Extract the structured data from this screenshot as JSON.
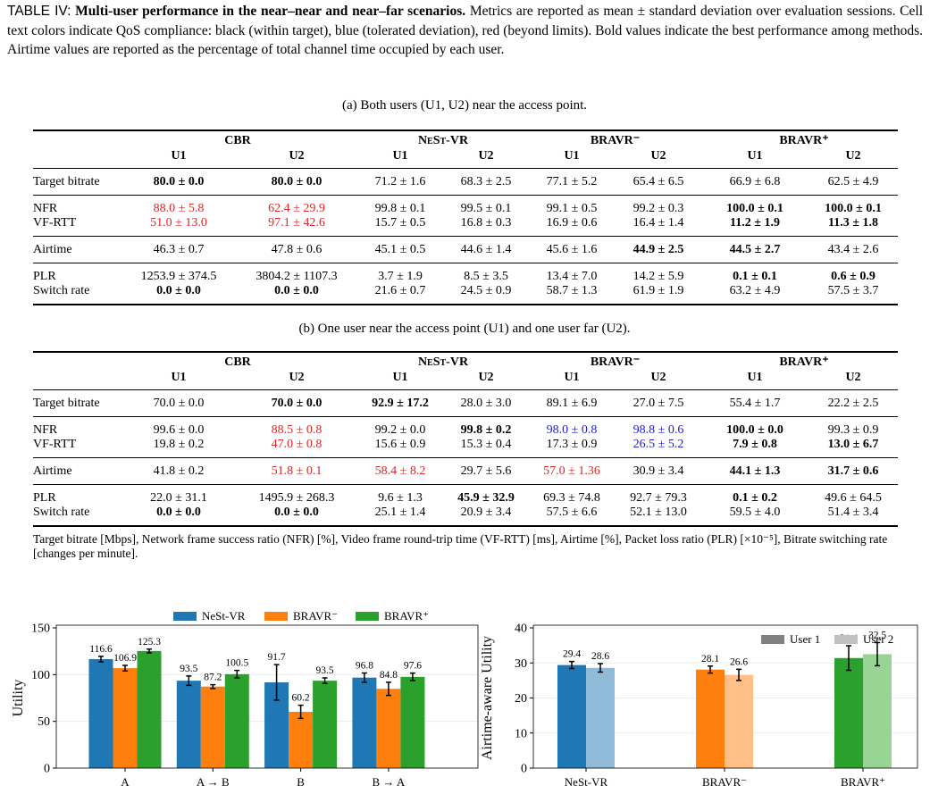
{
  "caption": {
    "label": "TABLE IV:",
    "title": "Multi-user performance in the near–near and near–far scenarios.",
    "text": "Metrics are reported as mean ± standard deviation over evaluation sessions. Cell text colors indicate QoS compliance: black (within target), blue (tolerated deviation), red (beyond limits). Bold values indicate the best performance among methods. Airtime values are reported as the percentage of total channel time occupied by each user."
  },
  "tables": [
    {
      "subcaption": "(a) Both users (U1, U2) near the access point.",
      "methods": [
        "CBR",
        "NeSt-VR",
        "BRAVR⁻",
        "BRAVR⁺"
      ],
      "users": [
        "U1",
        "U2"
      ],
      "row_groups": [
        [
          {
            "label": "Target bitrate",
            "cells": [
              {
                "text": "80.0 ± 0.0",
                "bold": true
              },
              {
                "text": "80.0 ± 0.0",
                "bold": true
              },
              "71.2 ± 1.6",
              "68.3 ± 2.5",
              "77.1 ± 5.2",
              "65.4 ± 6.5",
              "66.9 ± 6.8",
              "62.5 ± 4.9"
            ]
          }
        ],
        [
          {
            "label": "NFR",
            "cells": [
              {
                "text": "88.0 ± 5.8",
                "color": "#d42a2a"
              },
              {
                "text": "62.4 ± 29.9",
                "color": "#d42a2a"
              },
              "99.8 ± 0.1",
              "99.5 ± 0.1",
              "99.1 ± 0.5",
              "99.2 ± 0.3",
              {
                "text": "100.0 ± 0.1",
                "bold": true
              },
              {
                "text": "100.0 ± 0.1",
                "bold": true
              }
            ]
          },
          {
            "label": "VF-RTT",
            "cells": [
              {
                "text": "51.0 ± 13.0",
                "color": "#d42a2a"
              },
              {
                "text": "97.1 ± 42.6",
                "color": "#d42a2a"
              },
              "15.7 ± 0.5",
              "16.8 ± 0.3",
              "16.9 ± 0.6",
              "16.4 ± 1.4",
              {
                "text": "11.2 ± 1.9",
                "bold": true
              },
              {
                "text": "11.3 ± 1.8",
                "bold": true
              }
            ]
          }
        ],
        [
          {
            "label": "Airtime",
            "cells": [
              "46.3 ± 0.7",
              "47.8 ± 0.6",
              "45.1 ± 0.5",
              "44.6 ± 1.4",
              "45.6 ± 1.6",
              {
                "text": "44.9 ± 2.5",
                "bold": true
              },
              {
                "text": "44.5 ± 2.7",
                "bold": true
              },
              "43.4 ± 2.6"
            ]
          }
        ],
        [
          {
            "label": "PLR",
            "cells": [
              "1253.9 ± 374.5",
              "3804.2 ± 1107.3",
              "3.7 ± 1.9",
              "8.5 ± 3.5",
              "13.4 ± 7.0",
              "14.2 ± 5.9",
              {
                "text": "0.1 ± 0.1",
                "bold": true
              },
              {
                "text": "0.6 ± 0.9",
                "bold": true
              }
            ]
          },
          {
            "label": "Switch rate",
            "cells": [
              {
                "text": "0.0 ± 0.0",
                "bold": true
              },
              {
                "text": "0.0 ± 0.0",
                "bold": true
              },
              "21.6 ± 0.7",
              "24.5 ± 0.9",
              "58.7 ± 1.3",
              "61.9 ± 1.9",
              "63.2 ± 4.9",
              "57.5 ± 3.7"
            ]
          }
        ]
      ]
    },
    {
      "subcaption": "(b) One user near the access point (U1) and one user far (U2).",
      "methods": [
        "CBR",
        "NeSt-VR",
        "BRAVR⁻",
        "BRAVR⁺"
      ],
      "users": [
        "U1",
        "U2"
      ],
      "row_groups": [
        [
          {
            "label": "Target bitrate",
            "cells": [
              "70.0 ± 0.0",
              {
                "text": "70.0 ± 0.0",
                "bold": true
              },
              {
                "text": "92.9 ± 17.2",
                "bold": true
              },
              "28.0 ± 3.0",
              "89.1 ± 6.9",
              "27.0 ± 7.5",
              "55.4 ± 1.7",
              "22.2 ± 2.5"
            ]
          }
        ],
        [
          {
            "label": "NFR",
            "cells": [
              "99.6 ± 0.0",
              {
                "text": "88.5 ± 0.8",
                "color": "#d42a2a"
              },
              "99.2 ± 0.0",
              {
                "text": "99.8 ± 0.2",
                "bold": true
              },
              {
                "text": "98.0 ± 0.8",
                "color": "#2020d0"
              },
              {
                "text": "98.8 ± 0.6",
                "color": "#2020d0"
              },
              {
                "text": "100.0 ± 0.0",
                "bold": true
              },
              "99.3 ± 0.9"
            ]
          },
          {
            "label": "VF-RTT",
            "cells": [
              "19.8 ± 0.2",
              {
                "text": "47.0 ± 0.8",
                "color": "#d42a2a"
              },
              "15.6 ± 0.9",
              "15.3 ± 0.4",
              "17.3 ± 0.9",
              {
                "text": "26.5 ± 5.2",
                "color": "#2020d0"
              },
              {
                "text": "7.9 ± 0.8",
                "bold": true
              },
              {
                "text": "13.0 ± 6.7",
                "bold": true
              }
            ]
          }
        ],
        [
          {
            "label": "Airtime",
            "cells": [
              "41.8 ± 0.2",
              {
                "text": "51.8 ± 0.1",
                "color": "#d42a2a"
              },
              {
                "text": "58.4 ± 8.2",
                "color": "#d42a2a"
              },
              "29.7 ± 5.6",
              {
                "text": "57.0 ± 1.36",
                "color": "#d42a2a"
              },
              "30.9 ± 3.4",
              {
                "text": "44.1 ± 1.3",
                "bold": true
              },
              {
                "text": "31.7 ± 0.6",
                "bold": true
              }
            ]
          }
        ],
        [
          {
            "label": "PLR",
            "cells": [
              "22.0 ± 31.1",
              "1495.9 ± 268.3",
              "9.6 ± 1.3",
              {
                "text": "45.9 ± 32.9",
                "bold": true
              },
              "69.3 ± 74.8",
              "92.7 ± 79.3",
              {
                "text": "0.1 ± 0.2",
                "bold": true
              },
              "49.6 ± 64.5"
            ]
          },
          {
            "label": "Switch rate",
            "cells": [
              {
                "text": "0.0 ± 0.0",
                "bold": true
              },
              {
                "text": "0.0 ± 0.0",
                "bold": true
              },
              "25.1 ± 1.4",
              "20.9 ± 3.4",
              "57.5 ± 6.6",
              "52.1 ± 13.0",
              "59.5 ± 4.0",
              "51.4 ± 3.4"
            ]
          }
        ]
      ]
    }
  ],
  "footnote": "Target bitrate [Mbps], Network frame success ratio (NFR) [%], Video frame round-trip time (VF-RTT) [ms], Airtime [%], Packet loss ratio (PLR) [×10⁻⁵], Bitrate switching rate [changes per minute].",
  "chart_data": [
    {
      "type": "bar",
      "y_label": "Utility",
      "categories": [
        "A",
        "A → B",
        "B",
        "B → A"
      ],
      "series": [
        {
          "name": "NeSt-VR",
          "color": "#1f77b4",
          "values": [
            116.6,
            93.5,
            91.7,
            96.8
          ],
          "errors": [
            3,
            5,
            19,
            5
          ]
        },
        {
          "name": "BRAVR⁻",
          "color": "#ff7f0e",
          "values": [
            106.9,
            87.2,
            60.2,
            84.8
          ],
          "errors": [
            3,
            2,
            7,
            7
          ]
        },
        {
          "name": "BRAVR⁺",
          "color": "#2ca02c",
          "values": [
            125.3,
            100.5,
            93.5,
            97.6
          ],
          "errors": [
            2,
            4,
            3,
            4
          ]
        }
      ],
      "ylim": [
        0,
        150
      ],
      "yticks": [
        0,
        50,
        100,
        150
      ],
      "grid": true,
      "legend": "upper center"
    },
    {
      "type": "bar",
      "y_label": "Airtime-aware Utility",
      "categories": [
        "NeSt-VR",
        "BRAVR⁻",
        "BRAVR⁺"
      ],
      "series": [
        {
          "name": "User 1",
          "color": "#808080",
          "colors": [
            "#1f77b4",
            "#ff7f0e",
            "#2ca02c"
          ],
          "values": [
            29.4,
            28.1,
            31.4
          ],
          "errors": [
            1,
            1,
            3.5
          ]
        },
        {
          "name": "User 2",
          "color": "#c0c0c0",
          "colors": [
            "#8fbbd9",
            "#ffbf86",
            "#98d594"
          ],
          "values": [
            28.6,
            26.6,
            32.5
          ],
          "errors": [
            1.2,
            1.6,
            3.3
          ]
        }
      ],
      "ylim": [
        0,
        40
      ],
      "yticks": [
        0,
        10,
        20,
        30,
        40
      ],
      "grid": true,
      "legend": "upper right"
    }
  ]
}
